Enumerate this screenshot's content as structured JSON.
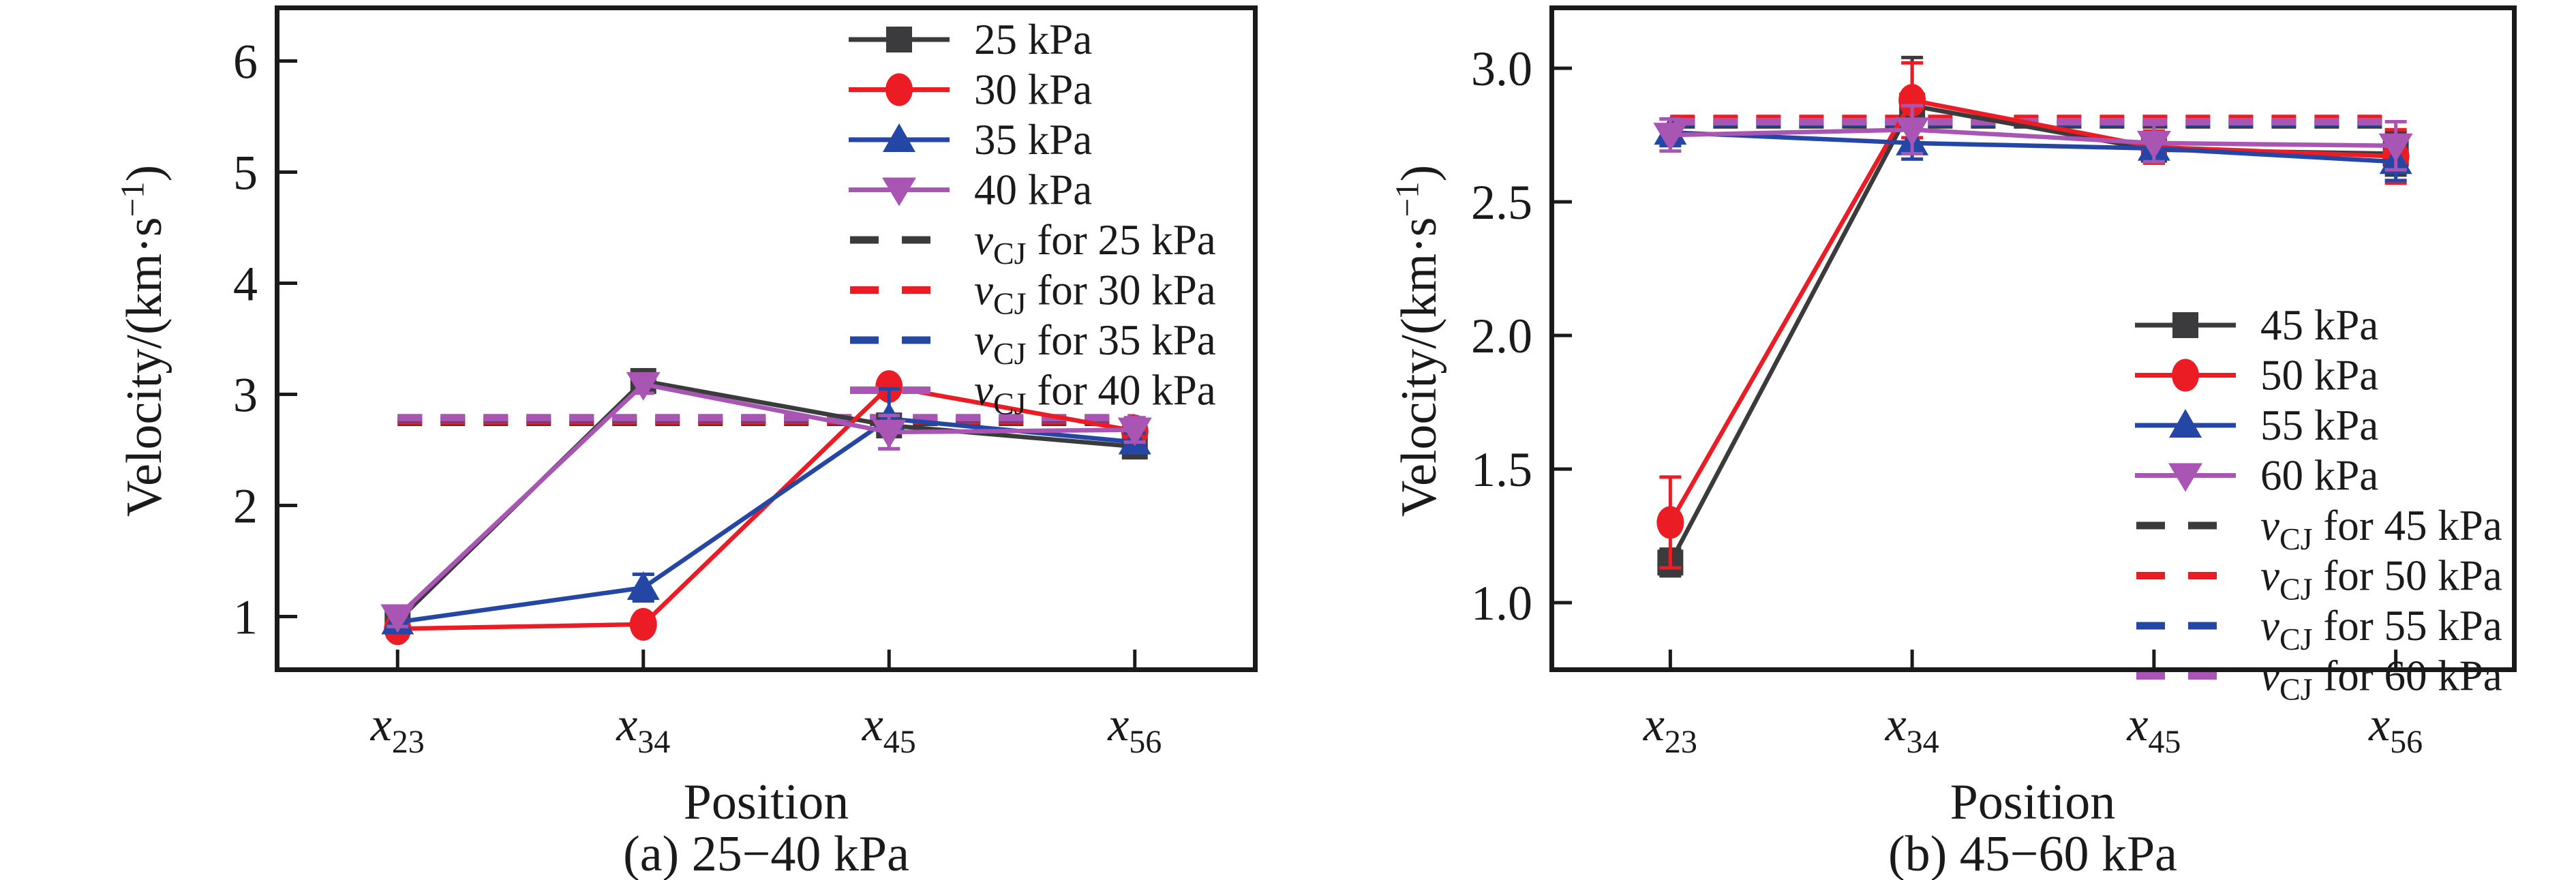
{
  "figure": {
    "background": "#ffffff",
    "text_color": "#1a1a1a",
    "axis_color": "#1a1a1a",
    "series_colors": {
      "dark": "#3b3b3d",
      "red": "#ec1c24",
      "blue": "#2447a5",
      "purple": "#a855b3"
    }
  },
  "chart_data": [
    {
      "type": "line",
      "panel": "a",
      "caption": "(a) 25−40 kPa",
      "xlabel": "Position",
      "ylabel": {
        "pre": "Velocity/(km·s",
        "sup": "−1",
        "post": ")"
      },
      "categories": [
        {
          "base": "x",
          "sub": "23"
        },
        {
          "base": "x",
          "sub": "34"
        },
        {
          "base": "x",
          "sub": "45"
        },
        {
          "base": "x",
          "sub": "56"
        }
      ],
      "ylim": [
        0.5,
        6.5
      ],
      "yticks": [
        {
          "v": 1,
          "label": "1"
        },
        {
          "v": 2,
          "label": "2"
        },
        {
          "v": 3,
          "label": "3"
        },
        {
          "v": 4,
          "label": "4"
        },
        {
          "v": 5,
          "label": "5"
        },
        {
          "v": 6,
          "label": "6"
        }
      ],
      "grid": false,
      "legend_position": "top-right",
      "series": [
        {
          "name": "25 kPa",
          "color": "#3b3b3d",
          "marker": "square",
          "values": [
            0.96,
            3.12,
            2.72,
            2.53
          ],
          "errors": [
            0.05,
            0.06,
            0.08,
            0.06
          ]
        },
        {
          "name": "30 kPa",
          "color": "#ec1c24",
          "marker": "circle",
          "values": [
            0.89,
            0.93,
            3.07,
            2.67
          ],
          "errors": [
            0.08,
            0.07,
            0.06,
            0.11
          ]
        },
        {
          "name": "35 kPa",
          "color": "#2447a5",
          "marker": "triangle-up",
          "values": [
            0.95,
            1.26,
            2.78,
            2.57
          ],
          "errors": [
            0.06,
            0.12,
            0.27,
            0.08
          ]
        },
        {
          "name": "40 kPa",
          "color": "#a855b3",
          "marker": "triangle-down",
          "values": [
            1.0,
            3.09,
            2.66,
            2.68
          ],
          "errors": [
            0.09,
            0.08,
            0.15,
            0.11
          ]
        }
      ],
      "vcj_lines": [
        {
          "label_v": "v",
          "label_sub": "CJ",
          "label_rest": " for 25 kPa",
          "color": "#3b3b3d",
          "value": 2.748
        },
        {
          "label_v": "v",
          "label_sub": "CJ",
          "label_rest": " for 30 kPa",
          "color": "#ec1c24",
          "value": 2.762
        },
        {
          "label_v": "v",
          "label_sub": "CJ",
          "label_rest": " for 35 kPa",
          "color": "#2447a5",
          "value": 2.783
        },
        {
          "label_v": "v",
          "label_sub": "CJ",
          "label_rest": " for 40 kPa",
          "color": "#a855b3",
          "value": 2.79
        }
      ]
    },
    {
      "type": "line",
      "panel": "b",
      "caption": "(b) 45−60 kPa",
      "xlabel": "Position",
      "ylabel": {
        "pre": "Velocity/(km·s",
        "sup": "−1",
        "post": ")"
      },
      "categories": [
        {
          "base": "x",
          "sub": "23"
        },
        {
          "base": "x",
          "sub": "34"
        },
        {
          "base": "x",
          "sub": "45"
        },
        {
          "base": "x",
          "sub": "56"
        }
      ],
      "ylim": [
        0.74,
        3.235
      ],
      "yticks": [
        {
          "v": 1.0,
          "label": "1.0"
        },
        {
          "v": 1.5,
          "label": "1.5"
        },
        {
          "v": 2.0,
          "label": "2.0"
        },
        {
          "v": 2.5,
          "label": "2.5"
        },
        {
          "v": 3.0,
          "label": "3.0"
        }
      ],
      "grid": false,
      "legend_position": "middle-right",
      "series": [
        {
          "name": "45 kPa",
          "color": "#3b3b3d",
          "marker": "square",
          "values": [
            1.15,
            2.86,
            2.695,
            2.68
          ],
          "errors": [
            0.05,
            0.18,
            0.05,
            0.08
          ]
        },
        {
          "name": "50 kPa",
          "color": "#ec1c24",
          "marker": "circle",
          "values": [
            1.3,
            2.88,
            2.705,
            2.67
          ],
          "errors": [
            0.17,
            0.14,
            0.06,
            0.1
          ]
        },
        {
          "name": "55 kPa",
          "color": "#2447a5",
          "marker": "triangle-up",
          "values": [
            2.76,
            2.72,
            2.7,
            2.65
          ],
          "errors": [
            0.05,
            0.06,
            0.05,
            0.07
          ]
        },
        {
          "name": "60 kPa",
          "color": "#a855b3",
          "marker": "triangle-down",
          "values": [
            2.75,
            2.77,
            2.72,
            2.71
          ],
          "errors": [
            0.06,
            0.09,
            0.07,
            0.09
          ]
        }
      ],
      "vcj_lines": [
        {
          "label_v": "v",
          "label_sub": "CJ",
          "label_rest": " for 45 kPa",
          "color": "#3b3b3d",
          "value": 2.788
        },
        {
          "label_v": "v",
          "label_sub": "CJ",
          "label_rest": " for 50 kPa",
          "color": "#ec1c24",
          "value": 2.812
        },
        {
          "label_v": "v",
          "label_sub": "CJ",
          "label_rest": " for 55 kPa",
          "color": "#2447a5",
          "value": 2.796
        },
        {
          "label_v": "v",
          "label_sub": "CJ",
          "label_rest": " for 60 kPa",
          "color": "#a855b3",
          "value": 2.8
        }
      ]
    }
  ]
}
